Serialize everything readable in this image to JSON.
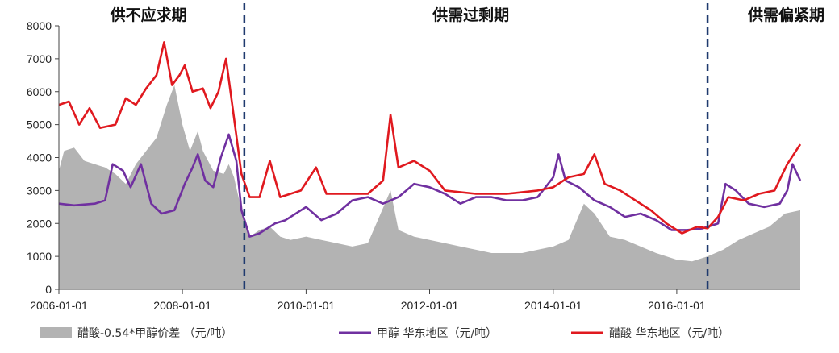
{
  "chart_data": {
    "type": "area",
    "ylim": [
      0,
      8000
    ],
    "yticks": [
      "0",
      "1000",
      "2000",
      "3000",
      "4000",
      "5000",
      "6000",
      "7000",
      "8000"
    ],
    "xlim": [
      "2006-01-01",
      "2017-12-31"
    ],
    "xticks": [
      "2006-01-01",
      "2008-01-01",
      "2010-01-01",
      "2012-01-01",
      "2014-01-01",
      "2016-01-01"
    ],
    "phases": [
      {
        "label": "供不应求期",
        "center": "2007-06-15"
      },
      {
        "label": "供需过剩期",
        "center": "2012-09-01"
      },
      {
        "label": "供需偏紧期",
        "center": "2017-06-01"
      }
    ],
    "dividers": [
      "2009-01-01",
      "2016-07-01"
    ],
    "series": [
      {
        "name": "醋酸-0.54*甲醇价差 （元/吨）",
        "kind": "area",
        "color": "#b3b3b3",
        "points": [
          [
            "2006-01-01",
            3600
          ],
          [
            "2006-02-01",
            4200
          ],
          [
            "2006-04-01",
            4300
          ],
          [
            "2006-06-01",
            3900
          ],
          [
            "2006-08-01",
            3800
          ],
          [
            "2006-10-01",
            3700
          ],
          [
            "2006-12-01",
            3500
          ],
          [
            "2007-02-01",
            3200
          ],
          [
            "2007-04-01",
            3800
          ],
          [
            "2007-06-01",
            4200
          ],
          [
            "2007-08-01",
            4600
          ],
          [
            "2007-10-01",
            5600
          ],
          [
            "2007-11-15",
            6200
          ],
          [
            "2008-01-01",
            5000
          ],
          [
            "2008-02-15",
            4200
          ],
          [
            "2008-04-01",
            4800
          ],
          [
            "2008-05-01",
            4200
          ],
          [
            "2008-07-01",
            3600
          ],
          [
            "2008-09-01",
            3500
          ],
          [
            "2008-10-01",
            3800
          ],
          [
            "2008-11-01",
            3400
          ],
          [
            "2008-12-15",
            2400
          ],
          [
            "2009-02-01",
            1600
          ],
          [
            "2009-04-01",
            1800
          ],
          [
            "2009-06-01",
            1900
          ],
          [
            "2009-08-01",
            1600
          ],
          [
            "2009-10-01",
            1500
          ],
          [
            "2010-01-01",
            1600
          ],
          [
            "2010-04-01",
            1500
          ],
          [
            "2010-07-01",
            1400
          ],
          [
            "2010-10-01",
            1300
          ],
          [
            "2011-01-01",
            1400
          ],
          [
            "2011-03-01",
            2100
          ],
          [
            "2011-05-15",
            3000
          ],
          [
            "2011-07-01",
            1800
          ],
          [
            "2011-10-01",
            1600
          ],
          [
            "2012-01-01",
            1500
          ],
          [
            "2012-04-01",
            1400
          ],
          [
            "2012-07-01",
            1300
          ],
          [
            "2012-10-01",
            1200
          ],
          [
            "2013-01-01",
            1100
          ],
          [
            "2013-04-01",
            1100
          ],
          [
            "2013-07-01",
            1100
          ],
          [
            "2013-10-01",
            1200
          ],
          [
            "2014-01-01",
            1300
          ],
          [
            "2014-04-01",
            1500
          ],
          [
            "2014-07-01",
            2600
          ],
          [
            "2014-09-01",
            2300
          ],
          [
            "2014-12-01",
            1600
          ],
          [
            "2015-03-01",
            1500
          ],
          [
            "2015-06-01",
            1300
          ],
          [
            "2015-09-01",
            1100
          ],
          [
            "2016-01-01",
            900
          ],
          [
            "2016-04-01",
            850
          ],
          [
            "2016-07-01",
            1000
          ],
          [
            "2016-10-01",
            1200
          ],
          [
            "2017-01-01",
            1500
          ],
          [
            "2017-04-01",
            1700
          ],
          [
            "2017-07-01",
            1900
          ],
          [
            "2017-10-01",
            2300
          ],
          [
            "2017-12-31",
            2400
          ]
        ]
      },
      {
        "name": "甲醇 华东地区（元/吨）",
        "kind": "line",
        "color": "#7030a0",
        "points": [
          [
            "2006-01-01",
            2600
          ],
          [
            "2006-04-01",
            2550
          ],
          [
            "2006-08-01",
            2600
          ],
          [
            "2006-10-01",
            2700
          ],
          [
            "2006-11-15",
            3800
          ],
          [
            "2007-01-15",
            3600
          ],
          [
            "2007-03-01",
            3100
          ],
          [
            "2007-05-01",
            3800
          ],
          [
            "2007-07-01",
            2600
          ],
          [
            "2007-09-01",
            2300
          ],
          [
            "2007-11-15",
            2400
          ],
          [
            "2008-01-15",
            3200
          ],
          [
            "2008-03-01",
            3700
          ],
          [
            "2008-04-01",
            4100
          ],
          [
            "2008-05-15",
            3300
          ],
          [
            "2008-07-01",
            3100
          ],
          [
            "2008-08-15",
            4000
          ],
          [
            "2008-10-01",
            4700
          ],
          [
            "2008-11-15",
            3900
          ],
          [
            "2008-12-15",
            2400
          ],
          [
            "2009-02-01",
            1600
          ],
          [
            "2009-04-01",
            1700
          ],
          [
            "2009-07-01",
            2000
          ],
          [
            "2009-09-01",
            2100
          ],
          [
            "2010-01-01",
            2500
          ],
          [
            "2010-04-01",
            2100
          ],
          [
            "2010-07-01",
            2300
          ],
          [
            "2010-10-01",
            2700
          ],
          [
            "2011-01-01",
            2800
          ],
          [
            "2011-04-01",
            2600
          ],
          [
            "2011-07-01",
            2800
          ],
          [
            "2011-10-01",
            3200
          ],
          [
            "2012-01-01",
            3100
          ],
          [
            "2012-04-01",
            2900
          ],
          [
            "2012-07-01",
            2600
          ],
          [
            "2012-10-01",
            2800
          ],
          [
            "2013-01-01",
            2800
          ],
          [
            "2013-04-01",
            2700
          ],
          [
            "2013-07-01",
            2700
          ],
          [
            "2013-10-01",
            2800
          ],
          [
            "2014-01-01",
            3400
          ],
          [
            "2014-02-01",
            4100
          ],
          [
            "2014-03-15",
            3300
          ],
          [
            "2014-06-01",
            3100
          ],
          [
            "2014-09-01",
            2700
          ],
          [
            "2014-12-01",
            2500
          ],
          [
            "2015-03-01",
            2200
          ],
          [
            "2015-06-01",
            2300
          ],
          [
            "2015-09-01",
            2100
          ],
          [
            "2015-12-01",
            1800
          ],
          [
            "2016-03-01",
            1800
          ],
          [
            "2016-06-01",
            1850
          ],
          [
            "2016-09-01",
            2000
          ],
          [
            "2016-10-15",
            3200
          ],
          [
            "2016-12-15",
            3000
          ],
          [
            "2017-03-01",
            2600
          ],
          [
            "2017-06-01",
            2500
          ],
          [
            "2017-09-01",
            2600
          ],
          [
            "2017-10-15",
            3000
          ],
          [
            "2017-11-15",
            3800
          ],
          [
            "2017-12-31",
            3300
          ]
        ]
      },
      {
        "name": "醋酸 华东地区（元/吨）",
        "kind": "line",
        "color": "#e0191f",
        "points": [
          [
            "2006-01-01",
            5600
          ],
          [
            "2006-03-01",
            5700
          ],
          [
            "2006-05-01",
            5000
          ],
          [
            "2006-07-01",
            5500
          ],
          [
            "2006-09-01",
            4900
          ],
          [
            "2006-12-01",
            5000
          ],
          [
            "2007-02-01",
            5800
          ],
          [
            "2007-04-01",
            5600
          ],
          [
            "2007-06-01",
            6100
          ],
          [
            "2007-08-01",
            6500
          ],
          [
            "2007-09-15",
            7500
          ],
          [
            "2007-11-01",
            6200
          ],
          [
            "2007-12-15",
            6500
          ],
          [
            "2008-01-15",
            6800
          ],
          [
            "2008-03-01",
            6000
          ],
          [
            "2008-05-01",
            6100
          ],
          [
            "2008-06-15",
            5500
          ],
          [
            "2008-08-01",
            6000
          ],
          [
            "2008-09-15",
            7000
          ],
          [
            "2008-11-01",
            5200
          ],
          [
            "2008-12-15",
            3500
          ],
          [
            "2009-02-01",
            2800
          ],
          [
            "2009-04-01",
            2800
          ],
          [
            "2009-06-01",
            3900
          ],
          [
            "2009-08-01",
            2800
          ],
          [
            "2009-12-01",
            3000
          ],
          [
            "2010-03-01",
            3700
          ],
          [
            "2010-05-01",
            2900
          ],
          [
            "2010-09-01",
            2900
          ],
          [
            "2011-01-01",
            2900
          ],
          [
            "2011-04-01",
            3300
          ],
          [
            "2011-05-15",
            5300
          ],
          [
            "2011-07-01",
            3700
          ],
          [
            "2011-10-01",
            3900
          ],
          [
            "2012-01-01",
            3600
          ],
          [
            "2012-04-01",
            3000
          ],
          [
            "2012-10-01",
            2900
          ],
          [
            "2013-04-01",
            2900
          ],
          [
            "2013-10-01",
            3000
          ],
          [
            "2014-01-01",
            3100
          ],
          [
            "2014-04-01",
            3400
          ],
          [
            "2014-07-01",
            3500
          ],
          [
            "2014-09-01",
            4100
          ],
          [
            "2014-11-01",
            3200
          ],
          [
            "2015-02-01",
            3000
          ],
          [
            "2015-05-01",
            2700
          ],
          [
            "2015-08-01",
            2400
          ],
          [
            "2015-11-01",
            2000
          ],
          [
            "2016-02-01",
            1700
          ],
          [
            "2016-05-01",
            1900
          ],
          [
            "2016-07-01",
            1850
          ],
          [
            "2016-09-01",
            2200
          ],
          [
            "2016-11-01",
            2800
          ],
          [
            "2017-02-01",
            2700
          ],
          [
            "2017-05-01",
            2900
          ],
          [
            "2017-08-01",
            3000
          ],
          [
            "2017-10-15",
            3800
          ],
          [
            "2017-12-31",
            4400
          ]
        ]
      }
    ]
  }
}
